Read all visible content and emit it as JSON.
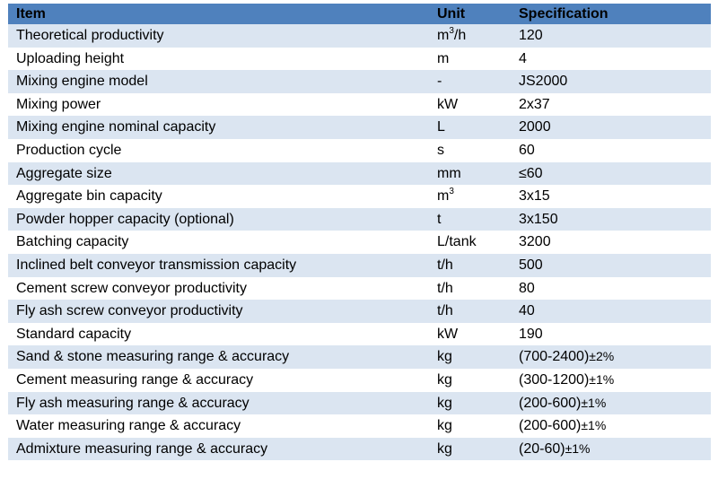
{
  "table": {
    "headers": [
      "Item",
      "Unit",
      "Specification"
    ],
    "rows": [
      {
        "item": "Theoretical productivity",
        "unit_base": "m",
        "unit_sup": "3",
        "unit_rest": "/h",
        "spec": "120"
      },
      {
        "item": "Uploading height",
        "unit": "m",
        "spec": "4"
      },
      {
        "item": "Mixing engine model",
        "unit": "-",
        "spec": "JS2000"
      },
      {
        "item": "Mixing power",
        "unit": "kW",
        "spec": "2x37"
      },
      {
        "item": "Mixing engine nominal capacity",
        "unit": "L",
        "spec": "2000"
      },
      {
        "item": "Production cycle",
        "unit": "s",
        "spec": "60"
      },
      {
        "item": "Aggregate size",
        "unit": "mm",
        "spec": "≤60"
      },
      {
        "item": "Aggregate bin capacity",
        "unit_base": "m",
        "unit_sup": "3",
        "unit_rest": "",
        "spec": "3x15"
      },
      {
        "item": "Powder hopper capacity (optional)",
        "unit": "t",
        "spec": "3x150"
      },
      {
        "item": "Batching capacity",
        "unit": "L/tank",
        "spec": "3200"
      },
      {
        "item": "Inclined belt conveyor transmission capacity",
        "unit": "t/h",
        "spec": "500"
      },
      {
        "item": "Cement screw conveyor productivity",
        "unit": "t/h",
        "spec": "80"
      },
      {
        "item": "Fly ash screw conveyor productivity",
        "unit": "t/h",
        "spec": "40"
      },
      {
        "item": "Standard capacity",
        "unit": "kW",
        "spec": "190"
      },
      {
        "item": "Sand & stone measuring range & accuracy",
        "unit": "kg",
        "spec_main": "(700-2400)",
        "spec_tol": "±2%"
      },
      {
        "item": "Cement measuring range & accuracy",
        "unit": "kg",
        "spec_main": "(300-1200)",
        "spec_tol": "±1%"
      },
      {
        "item": "Fly ash measuring range & accuracy",
        "unit": "kg",
        "spec_main": "(200-600)",
        "spec_tol": "±1%"
      },
      {
        "item": "Water measuring range & accuracy",
        "unit": "kg",
        "spec_main": "(200-600)",
        "spec_tol": "±1%"
      },
      {
        "item": "Admixture measuring range & accuracy",
        "unit": "kg",
        "spec_main": "(20-60)",
        "spec_tol": "±1%"
      }
    ]
  }
}
